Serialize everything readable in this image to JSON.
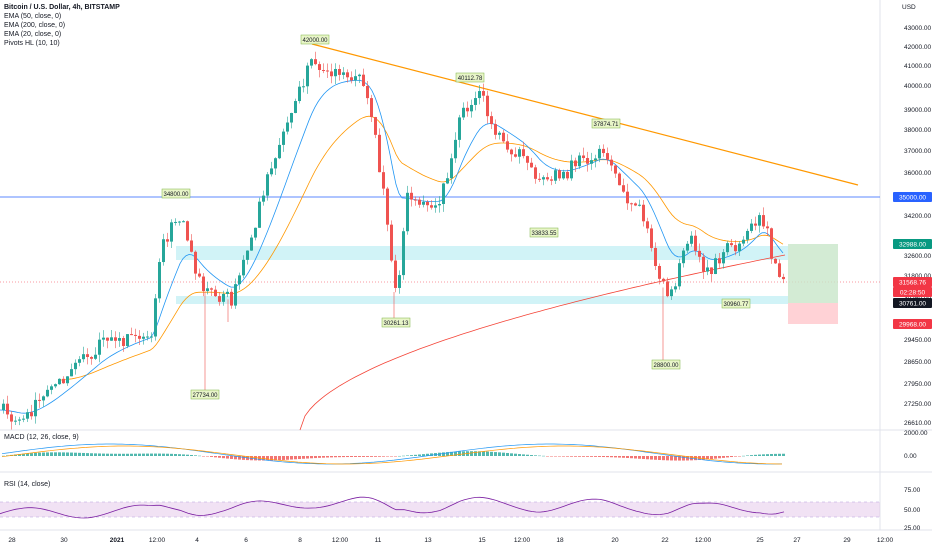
{
  "header": {
    "title": "Bitcoin / U.S. Dollar, 4h, BITSTAMP",
    "indicators": [
      "EMA (50, close, 0)",
      "EMA (200, close, 0)",
      "EMA (20, close, 0)",
      "Pivots HL (10, 10)"
    ]
  },
  "price_axis": {
    "currency": "USD",
    "ticks": [
      "43000.00",
      "42000.00",
      "41000.00",
      "40000.00",
      "39000.00",
      "38000.00",
      "37000.00",
      "36000.00",
      "34200.00",
      "32600.00",
      "31800.00",
      "30250.00",
      "29450.00",
      "28650.00",
      "27950.00",
      "27250.00",
      "26610.00"
    ],
    "badges": [
      {
        "label": "35000.00",
        "color": "#2962ff",
        "text": "#ffffff"
      },
      {
        "label": "32988.00",
        "color": "#089981",
        "text": "#ffffff"
      },
      {
        "label": "31568.76",
        "color": "#f23645",
        "text": "#ffffff"
      },
      {
        "label": "02:28:50",
        "color": "#f23645",
        "text": "#ffffff"
      },
      {
        "label": "30761.00",
        "color": "#131722",
        "text": "#ffffff"
      },
      {
        "label": "29968.00",
        "color": "#f23645",
        "text": "#ffffff"
      }
    ]
  },
  "pivots": [
    {
      "label": "42000.00",
      "kind": "high"
    },
    {
      "label": "40112.78",
      "kind": "high"
    },
    {
      "label": "37874.71",
      "kind": "high"
    },
    {
      "label": "34800.00",
      "kind": "high"
    },
    {
      "label": "33833.55",
      "kind": "low"
    },
    {
      "label": "30261.13",
      "kind": "low"
    },
    {
      "label": "30960.77",
      "kind": "low"
    },
    {
      "label": "28800.00",
      "kind": "low"
    },
    {
      "label": "27734.00",
      "kind": "low"
    }
  ],
  "time_axis": [
    "28",
    "30",
    "2021",
    "12:00",
    "4",
    "6",
    "8",
    "12:00",
    "11",
    "13",
    "15",
    "12:00",
    "18",
    "20",
    "22",
    "12:00",
    "25",
    "27",
    "29",
    "12:00"
  ],
  "macd": {
    "label": "MACD (12, 26, close, 9)",
    "ticks": [
      "2000.00",
      "0.00"
    ]
  },
  "rsi": {
    "label": "RSI (14, close)",
    "ticks": [
      "75.00",
      "50.00",
      "25.00"
    ]
  },
  "colors": {
    "up": "#26a69a",
    "down": "#ef5350",
    "ema20": "#2196f3",
    "ema50": "#ff9800",
    "ema200": "#f44336",
    "trendline": "#ff9800",
    "zone": "#b2ebf2",
    "rsi": "#7b1fa2"
  }
}
